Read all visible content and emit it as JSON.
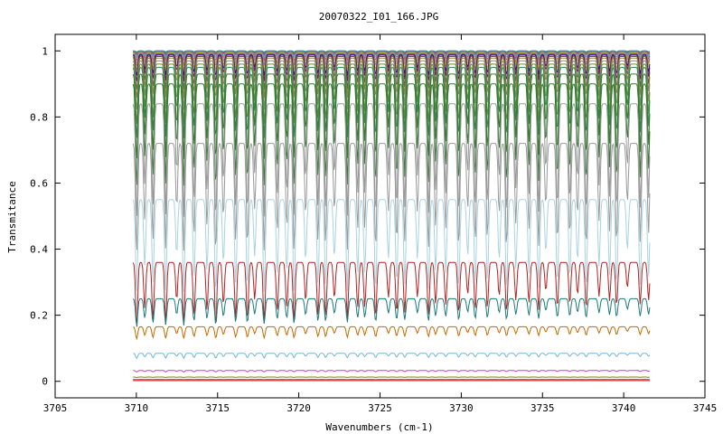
{
  "chart_data": {
    "type": "line",
    "title": "20070322_I01_166.JPG",
    "xlabel": "Wavenumbers (cm-1)",
    "ylabel": "Transmitance",
    "xlim": [
      3705,
      3745
    ],
    "ylim": [
      -0.05,
      1.05
    ],
    "x_ticks": [
      3705,
      3710,
      3715,
      3720,
      3725,
      3730,
      3735,
      3740,
      3745
    ],
    "y_ticks": [
      0,
      0.2,
      0.4,
      0.6,
      0.8,
      1
    ],
    "x_tick_labels": [
      "3705",
      "3710",
      "3715",
      "3720",
      "3725",
      "3730",
      "3735",
      "3740",
      "3745"
    ],
    "y_tick_labels": [
      "0",
      "0.2",
      "0.4",
      "0.6",
      "0.8",
      "1"
    ],
    "x_range_of_data": [
      3709.8,
      3741.6
    ],
    "grid": false,
    "legend": "none",
    "series": [
      {
        "level": 1.0,
        "depth": 0.004,
        "color": "#1f77b4"
      },
      {
        "level": 1.0,
        "depth": 0.008,
        "color": "#2ca02c"
      },
      {
        "level": 0.999,
        "depth": 0.012,
        "color": "#d62728"
      },
      {
        "level": 0.999,
        "depth": 0.018,
        "color": "#9467bd"
      },
      {
        "level": 0.998,
        "depth": 0.025,
        "color": "#17becf"
      },
      {
        "level": 0.997,
        "depth": 0.035,
        "color": "#8c564b"
      },
      {
        "level": 0.996,
        "depth": 0.045,
        "color": "#e377c2"
      },
      {
        "level": 0.995,
        "depth": 0.055,
        "color": "#7f7f7f"
      },
      {
        "level": 0.993,
        "depth": 0.07,
        "color": "#bcbd22"
      },
      {
        "level": 0.99,
        "depth": 0.09,
        "color": "#1a1a8a"
      },
      {
        "level": 0.987,
        "depth": 0.11,
        "color": "#800080"
      },
      {
        "level": 0.983,
        "depth": 0.14,
        "color": "#555555"
      },
      {
        "level": 0.978,
        "depth": 0.17,
        "color": "#9a7b2f"
      },
      {
        "level": 0.97,
        "depth": 0.21,
        "color": "#888888"
      },
      {
        "level": 0.96,
        "depth": 0.26,
        "color": "#6b8e23"
      },
      {
        "level": 0.95,
        "depth": 0.31,
        "color": "#2e8b57"
      },
      {
        "level": 0.93,
        "depth": 0.38,
        "color": "#3a7d2c"
      },
      {
        "level": 0.9,
        "depth": 0.47,
        "color": "#2f7a2f"
      },
      {
        "level": 0.84,
        "depth": 0.56,
        "color": "#999999"
      },
      {
        "level": 0.72,
        "depth": 0.62,
        "color": "#999999"
      },
      {
        "level": 0.55,
        "depth": 0.7,
        "color": "#a7d3df"
      },
      {
        "level": 0.36,
        "depth": 0.75,
        "color": "#b22222"
      },
      {
        "level": 0.25,
        "depth": 0.45,
        "color": "#1b7a7a"
      },
      {
        "level": 0.165,
        "depth": 0.3,
        "color": "#c46a00"
      },
      {
        "level": 0.085,
        "depth": 0.25,
        "color": "#6fb6e0"
      },
      {
        "level": 0.033,
        "depth": 0.2,
        "color": "#c040c0"
      },
      {
        "level": 0.013,
        "depth": 0.15,
        "color": "#8b8000"
      },
      {
        "level": 0.006,
        "depth": 0.1,
        "color": "#a0522d"
      },
      {
        "level": 0.004,
        "depth": 0.0,
        "color": "#ff6600"
      },
      {
        "level": 0.003,
        "depth": 0.0,
        "color": "#e05050"
      }
    ]
  }
}
